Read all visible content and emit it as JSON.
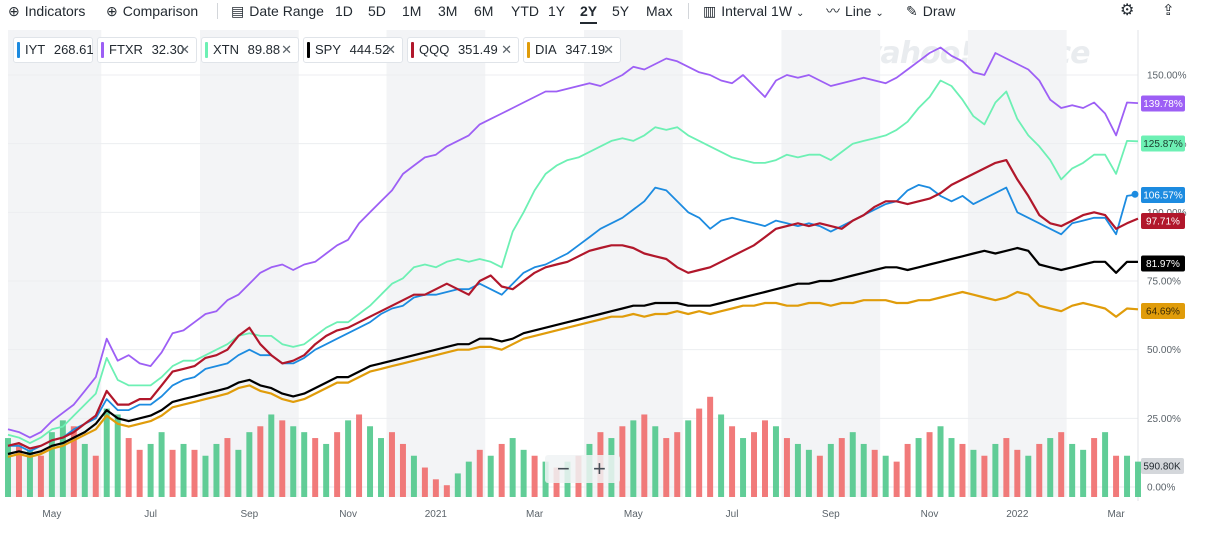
{
  "toolbar": {
    "indicators": "Indicators",
    "comparison": "Comparison",
    "date_range": "Date Range",
    "ranges": [
      "1D",
      "5D",
      "1M",
      "3M",
      "6M",
      "YTD",
      "1Y",
      "2Y",
      "5Y",
      "Max"
    ],
    "active_range": "2Y",
    "interval": "Interval",
    "interval_value": "1W",
    "chart_type": "Line",
    "draw": "Draw"
  },
  "watermark": "yahoo!finance",
  "chips": [
    {
      "symbol": "IYT",
      "price": "268.61",
      "color": "#1c8be0",
      "removable": false
    },
    {
      "symbol": "FTXR",
      "price": "32.30",
      "color": "#9d5ff5",
      "removable": true
    },
    {
      "symbol": "XTN",
      "price": "89.88",
      "color": "#6df0b4",
      "removable": true
    },
    {
      "symbol": "SPY",
      "price": "444.52",
      "color": "#000000",
      "removable": true
    },
    {
      "symbol": "QQQ",
      "price": "351.49",
      "color": "#b1172b",
      "removable": true
    },
    {
      "symbol": "DIA",
      "price": "347.19",
      "color": "#e09c0a",
      "removable": true
    }
  ],
  "volume_label": "590.80K",
  "chart_data": {
    "type": "line",
    "title": "",
    "xlabel": "",
    "ylabel": "",
    "ylim": [
      -5,
      170
    ],
    "yticks": [
      "0.00%",
      "25.00%",
      "50.00%",
      "75.00%",
      "100.00%",
      "125.00%",
      "150.00%"
    ],
    "ytick_values": [
      0,
      25,
      50,
      75,
      100,
      125,
      150
    ],
    "x_tick_labels": [
      "May",
      "Jul",
      "Sep",
      "Nov",
      "2021",
      "Mar",
      "May",
      "Jul",
      "Sep",
      "Nov",
      "2022",
      "Mar"
    ],
    "x_tick_weeks": [
      4,
      13,
      22,
      31,
      39,
      48,
      57,
      66,
      75,
      84,
      92,
      101
    ],
    "weeks": 104,
    "end_labels": [
      "139.78%",
      "125.87%",
      "106.57%",
      "97.71%",
      "81.97%",
      "64.69%"
    ],
    "series": [
      {
        "name": "FTXR",
        "color": "#9d5ff5",
        "values": [
          21,
          20,
          18,
          20,
          24,
          27,
          30,
          35,
          40,
          54,
          46,
          48,
          45,
          44,
          49,
          56,
          57,
          60,
          63,
          64,
          68,
          70,
          74,
          78,
          80,
          81,
          79,
          81,
          82,
          85,
          88,
          90,
          96,
          100,
          104,
          108,
          114,
          117,
          120,
          121,
          124,
          126,
          128,
          132,
          134,
          136,
          138,
          140,
          142,
          144,
          144,
          145,
          146,
          147,
          146,
          148,
          150,
          153,
          152,
          154,
          156,
          155,
          153,
          151,
          150,
          148,
          147,
          150,
          146,
          142,
          148,
          150,
          149,
          150,
          148,
          146,
          147,
          148,
          149,
          148,
          147,
          149,
          152,
          155,
          158,
          160,
          157,
          155,
          151,
          150,
          158,
          156,
          154,
          152,
          148,
          141,
          138,
          139,
          138,
          140,
          136,
          128,
          140,
          139.78
        ]
      },
      {
        "name": "XTN",
        "color": "#6df0b4",
        "values": [
          19,
          18,
          16,
          18,
          21,
          22,
          26,
          30,
          34,
          47,
          39,
          37,
          37,
          37,
          40,
          44,
          46,
          46,
          48,
          50,
          52,
          55,
          56,
          55,
          55,
          52,
          51,
          52,
          55,
          58,
          60,
          60,
          63,
          66,
          70,
          74,
          76,
          80,
          81,
          80,
          82,
          83,
          82,
          83,
          82,
          80,
          93,
          100,
          108,
          114,
          117,
          119,
          120,
          122,
          124,
          126,
          127,
          126,
          128,
          131,
          130,
          131,
          128,
          126,
          124,
          122,
          120,
          119,
          118,
          118,
          119,
          121,
          120,
          121,
          121,
          119,
          122,
          125,
          126,
          127,
          128,
          130,
          133,
          138,
          142,
          148,
          146,
          141,
          135,
          132,
          140,
          144,
          134,
          128,
          124,
          119,
          112,
          116,
          118,
          121,
          121,
          114,
          126,
          125.87
        ]
      },
      {
        "name": "IYT",
        "color": "#1c8be0",
        "values": [
          15,
          15,
          13,
          15,
          17,
          18,
          21,
          23,
          25,
          32,
          28,
          28,
          30,
          30,
          33,
          37,
          39,
          40,
          43,
          44,
          45,
          48,
          50,
          48,
          48,
          45,
          45,
          47,
          50,
          52,
          54,
          56,
          58,
          60,
          63,
          65,
          66,
          69,
          70,
          70,
          71,
          72,
          72,
          74,
          72,
          70,
          74,
          78,
          80,
          81,
          83,
          85,
          88,
          91,
          94,
          96,
          98,
          101,
          104,
          109,
          108,
          104,
          100,
          98,
          94,
          97,
          98,
          97,
          96,
          95,
          97,
          96,
          95,
          96,
          95,
          93,
          95,
          97,
          99,
          101,
          103,
          104,
          108,
          110,
          109,
          106,
          104,
          106,
          103,
          105,
          107,
          109,
          100,
          98,
          96,
          94,
          92,
          96,
          97,
          98,
          98,
          92,
          106,
          106.57
        ]
      },
      {
        "name": "QQQ",
        "color": "#b1172b",
        "values": [
          15,
          16,
          14,
          15,
          17,
          18,
          20,
          23,
          26,
          35,
          30,
          30,
          32,
          32,
          37,
          42,
          43,
          44,
          47,
          48,
          50,
          55,
          58,
          52,
          48,
          45,
          46,
          48,
          52,
          55,
          57,
          58,
          60,
          62,
          64,
          66,
          68,
          70,
          70,
          72,
          74,
          72,
          70,
          75,
          77,
          73,
          72,
          75,
          78,
          80,
          81,
          82,
          84,
          86,
          87,
          88,
          88,
          87,
          85,
          84,
          83,
          80,
          78,
          79,
          80,
          82,
          84,
          86,
          88,
          91,
          94,
          95,
          96,
          95,
          96,
          95,
          94,
          97,
          99,
          102,
          104,
          104,
          103,
          104,
          105,
          107,
          110,
          112,
          114,
          116,
          118,
          119,
          112,
          106,
          99,
          96,
          95,
          97,
          99,
          100,
          99,
          94,
          96,
          97.71
        ]
      },
      {
        "name": "SPY",
        "color": "#000000",
        "values": [
          12,
          13,
          12,
          13,
          15,
          16,
          18,
          20,
          23,
          28,
          25,
          24,
          25,
          26,
          28,
          31,
          32,
          33,
          34,
          35,
          36,
          38,
          39,
          37,
          36,
          34,
          33,
          34,
          36,
          38,
          40,
          40,
          42,
          44,
          45,
          46,
          47,
          48,
          49,
          50,
          51,
          52,
          52,
          54,
          54,
          53,
          54,
          56,
          57,
          58,
          59,
          60,
          61,
          62,
          63,
          64,
          65,
          66,
          66,
          67,
          67,
          67,
          66,
          66,
          66,
          67,
          68,
          69,
          70,
          71,
          72,
          73,
          74,
          74,
          75,
          75,
          76,
          77,
          78,
          79,
          80,
          80,
          79,
          80,
          81,
          82,
          83,
          84,
          85,
          86,
          85,
          86,
          87,
          86,
          81,
          80,
          79,
          80,
          81,
          82,
          82,
          78,
          82,
          81.97
        ]
      },
      {
        "name": "DIA",
        "color": "#e09c0a",
        "values": [
          11,
          12,
          11,
          12,
          14,
          15,
          17,
          19,
          21,
          26,
          23,
          22,
          23,
          24,
          26,
          29,
          30,
          31,
          32,
          33,
          34,
          36,
          37,
          35,
          34,
          32,
          31,
          32,
          34,
          36,
          38,
          38,
          40,
          42,
          43,
          44,
          45,
          46,
          47,
          48,
          49,
          50,
          50,
          51,
          51,
          50,
          52,
          54,
          55,
          56,
          57,
          58,
          59,
          60,
          61,
          62,
          62,
          63,
          62,
          63,
          63,
          64,
          63,
          64,
          63,
          64,
          65,
          66,
          66,
          67,
          67,
          66,
          66,
          67,
          67,
          66,
          67,
          67,
          68,
          68,
          68,
          67,
          67,
          68,
          68,
          69,
          70,
          71,
          70,
          69,
          68,
          69,
          71,
          70,
          66,
          65,
          64,
          66,
          67,
          66,
          65,
          62,
          65,
          64.69
        ]
      }
    ],
    "volume": [
      20,
      18,
      16,
      14,
      22,
      26,
      24,
      18,
      14,
      30,
      28,
      20,
      16,
      18,
      22,
      16,
      18,
      16,
      14,
      18,
      20,
      16,
      22,
      24,
      28,
      26,
      24,
      22,
      20,
      18,
      22,
      26,
      28,
      24,
      20,
      22,
      18,
      14,
      10,
      6,
      4,
      8,
      12,
      16,
      14,
      18,
      20,
      16,
      14,
      12,
      10,
      12,
      14,
      18,
      22,
      20,
      24,
      26,
      28,
      24,
      20,
      22,
      26,
      30,
      34,
      28,
      24,
      20,
      22,
      26,
      24,
      20,
      18,
      16,
      14,
      18,
      20,
      22,
      18,
      16,
      14,
      12,
      18,
      20,
      22,
      24,
      20,
      18,
      16,
      14,
      18,
      20,
      16,
      14,
      18,
      20,
      22,
      18,
      16,
      20,
      22,
      14,
      14,
      12
    ],
    "volume_up": [
      true,
      false,
      true,
      false,
      true,
      true,
      false,
      true,
      false,
      true,
      true,
      false,
      false,
      true,
      true,
      false,
      true,
      false,
      true,
      true,
      false,
      true,
      true,
      false,
      true,
      false,
      true,
      true,
      false,
      true,
      false,
      true,
      false,
      true,
      true,
      false,
      false,
      true,
      false,
      false,
      false,
      true,
      true,
      false,
      true,
      false,
      true,
      true,
      false,
      true,
      false,
      true,
      false,
      true,
      false,
      true,
      false,
      true,
      false,
      true,
      false,
      false,
      true,
      false,
      false,
      true,
      false,
      true,
      false,
      false,
      true,
      false,
      true,
      true,
      false,
      true,
      false,
      true,
      true,
      false,
      true,
      false,
      false,
      true,
      false,
      true,
      true,
      false,
      true,
      false,
      true,
      false,
      false,
      true,
      false,
      true,
      false,
      true,
      true,
      false,
      true,
      false,
      true,
      true
    ]
  }
}
